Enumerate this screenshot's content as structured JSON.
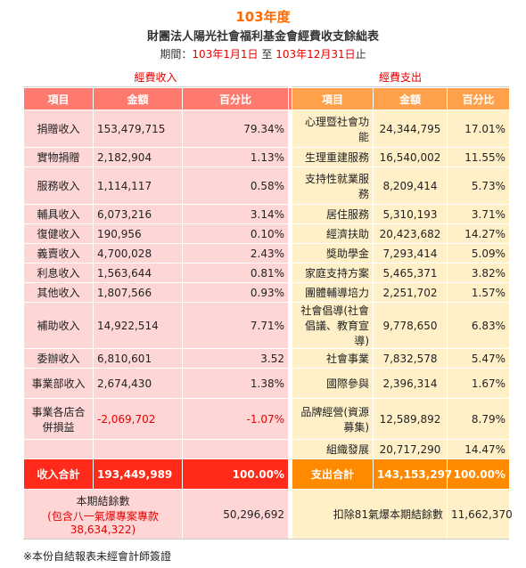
{
  "header": {
    "year": "103年度",
    "title": "財團法人陽光社會福利基金會經費收支餘絀表",
    "period_prefix": "期間：",
    "period_start": "103年1月1日",
    "period_mid": "至",
    "period_end": "103年12月31日",
    "period_suffix": "止"
  },
  "income": {
    "section_title": "經費收入",
    "columns": [
      "項目",
      "金額",
      "百分比"
    ],
    "rows": [
      {
        "item": "捐贈收入",
        "amount": "153,479,715",
        "pct": "79.34%"
      },
      {
        "item": "實物捐贈",
        "amount": "2,182,904",
        "pct": "1.13%"
      },
      {
        "item": "服務收入",
        "amount": "1,114,117",
        "pct": "0.58%"
      },
      {
        "item": "輔具收入",
        "amount": "6,073,216",
        "pct": "3.14%"
      },
      {
        "item": "復健收入",
        "amount": "190,956",
        "pct": "0.10%"
      },
      {
        "item": "義賣收入",
        "amount": "4,700,028",
        "pct": "2.43%"
      },
      {
        "item": "利息收入",
        "amount": "1,563,644",
        "pct": "0.81%"
      },
      {
        "item": "其他收入",
        "amount": "1,807,566",
        "pct": "0.93%"
      },
      {
        "item": "補助收入",
        "amount": "14,922,514",
        "pct": "7.71%"
      },
      {
        "item": "委辦收入",
        "amount": "6,810,601",
        "pct": "3.52"
      },
      {
        "item": "事業部收入",
        "amount": "2,674,430",
        "pct": "1.38%"
      },
      {
        "item": "事業各店合併損益",
        "amount": "-2,069,702",
        "pct": "-1.07%"
      }
    ],
    "total_label": "收入合計",
    "total_amount": "193,449,989",
    "total_pct": "100.00%",
    "balance_label": "本期結餘數",
    "balance_note": "(包含八一氣爆專案專款38,634,322)",
    "balance_amount": "50,296,692"
  },
  "expense": {
    "section_title": "經費支出",
    "columns": [
      "項目",
      "金額",
      "百分比"
    ],
    "rows": [
      {
        "item": "心理暨社會功能",
        "amount": "24,344,795",
        "pct": "17.01%"
      },
      {
        "item": "生理重建服務",
        "amount": "16,540,002",
        "pct": "11.55%"
      },
      {
        "item": "支持性就業服務",
        "amount": "8,209,414",
        "pct": "5.73%"
      },
      {
        "item": "居住服務",
        "amount": "5,310,193",
        "pct": "3.71%"
      },
      {
        "item": "經濟扶助",
        "amount": "20,423,682",
        "pct": "14.27%"
      },
      {
        "item": "獎助學金",
        "amount": "7,293,414",
        "pct": "5.09%"
      },
      {
        "item": "家庭支持方案",
        "amount": "5,465,371",
        "pct": "3.82%"
      },
      {
        "item": "團體輔導培力",
        "amount": "2,251,702",
        "pct": "1.57%"
      },
      {
        "item": "社會倡導(社會倡議、教育宣導)",
        "amount": "9,778,650",
        "pct": "6.83%"
      },
      {
        "item": "社會事業",
        "amount": "7,832,578",
        "pct": "5.47%"
      },
      {
        "item": "國際參與",
        "amount": "2,396,314",
        "pct": "1.67%"
      },
      {
        "item": "品牌經營(資源募集)",
        "amount": "12,589,892",
        "pct": "8.79%"
      },
      {
        "item": "組織發展",
        "amount": "20,717,290",
        "pct": "14.47%"
      }
    ],
    "total_label": "支出合計",
    "total_amount": "143,153,297",
    "total_pct": "100.00%",
    "balance_label": "扣除81氣爆本期結餘數",
    "balance_amount": "11,662,370"
  },
  "footer": {
    "note": "※本份自結報表未經會計師簽證"
  },
  "colors": {
    "accent_orange": "#ff6a00",
    "income_header": "#ff7a6e",
    "expense_header": "#ffa04a",
    "income_total": "#ff2a1a",
    "expense_total": "#ff8a00",
    "income_cell": "#ffd6d6",
    "expense_cell": "#fff0c8",
    "negative_red": "#e60000"
  }
}
